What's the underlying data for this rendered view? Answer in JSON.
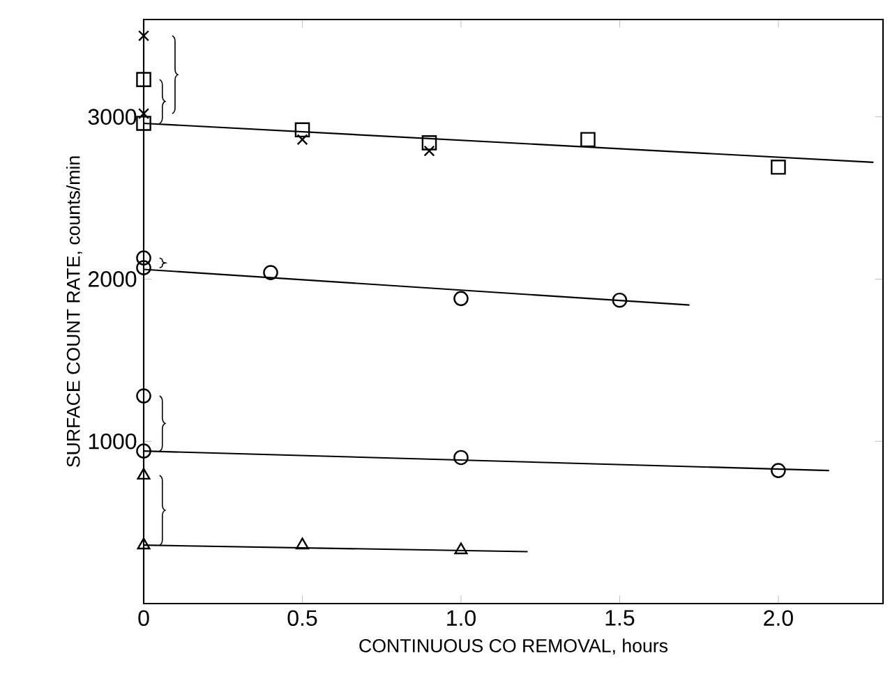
{
  "chart_data": {
    "type": "scatter",
    "xlabel": "CONTINUOUS  CO REMOVAL, hours",
    "ylabel": "SURFACE  COUNT RATE,  counts/min",
    "xlim": [
      0,
      2.33
    ],
    "ylim": [
      0,
      3600
    ],
    "xticks": [
      0,
      0.5,
      {
        "value": 1,
        "label": "1.0"
      },
      1.5,
      {
        "value": 2,
        "label": "2.0"
      }
    ],
    "yticks": [
      1000,
      2000,
      3000
    ],
    "grid": false,
    "series": [
      {
        "marker": "cross",
        "color": "#000000",
        "x": [
          0,
          0,
          0.5,
          0.9
        ],
        "values": [
          3500,
          3020,
          2860,
          2790
        ]
      },
      {
        "marker": "square",
        "color": "#000000",
        "x": [
          0,
          0,
          0.5,
          0.9,
          1.4,
          2.0
        ],
        "values": [
          3230,
          2960,
          2920,
          2840,
          2860,
          2690
        ]
      },
      {
        "marker": "circle",
        "color": "#000000",
        "x": [
          0,
          0,
          0.4,
          1.0,
          1.5
        ],
        "values": [
          2130,
          2070,
          2040,
          1880,
          1870
        ]
      },
      {
        "marker": "circle",
        "color": "#000000",
        "x": [
          0,
          0,
          1.0,
          2.0
        ],
        "values": [
          1280,
          940,
          900,
          820
        ]
      },
      {
        "marker": "triangle",
        "color": "#000000",
        "x": [
          0,
          0,
          0.5,
          1.0
        ],
        "values": [
          790,
          360,
          360,
          330
        ]
      },
      {
        "type": "line",
        "marker": "none",
        "color": "#000000",
        "x": [
          0,
          2.3
        ],
        "values": [
          2960,
          2720
        ]
      },
      {
        "type": "line",
        "marker": "none",
        "color": "#000000",
        "x": [
          0,
          1.72
        ],
        "values": [
          2060,
          1840
        ]
      },
      {
        "type": "line",
        "marker": "none",
        "color": "#000000",
        "x": [
          0,
          2.16
        ],
        "values": [
          940,
          820
        ]
      },
      {
        "type": "line",
        "marker": "none",
        "color": "#000000",
        "x": [
          0,
          1.21
        ],
        "values": [
          360,
          320
        ]
      }
    ]
  }
}
